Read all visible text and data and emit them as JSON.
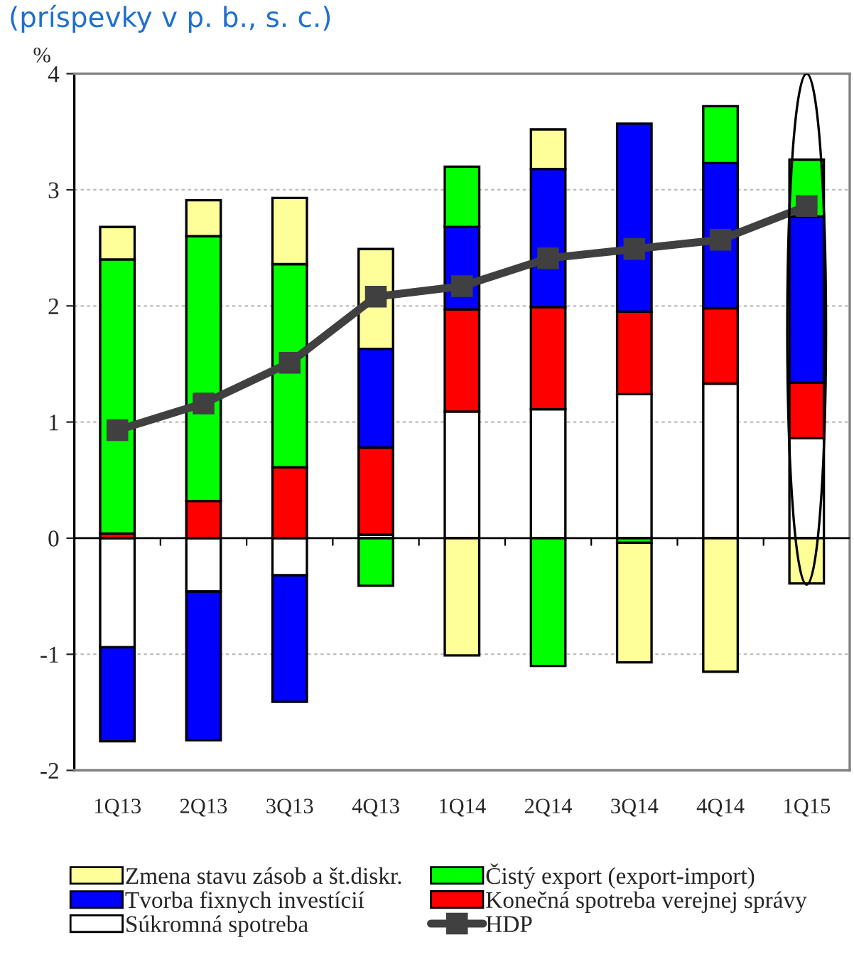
{
  "chart_data": {
    "type": "bar",
    "stacked": true,
    "title": "(príspevky v p. b., s. c.)",
    "ylabel": "%",
    "categories": [
      "1Q13",
      "2Q13",
      "3Q13",
      "4Q13",
      "1Q14",
      "2Q14",
      "3Q14",
      "4Q14",
      "1Q15"
    ],
    "series": [
      {
        "name": "Súkromná spotreba",
        "color": "#ffffff",
        "values": [
          -0.94,
          -0.46,
          -0.32,
          0.03,
          1.09,
          1.11,
          1.24,
          1.33,
          0.86
        ]
      },
      {
        "name": "Konečná spotreba verejnej správy",
        "color": "#ff0000",
        "values": [
          0.04,
          0.32,
          0.61,
          0.75,
          0.88,
          0.88,
          0.71,
          0.65,
          0.48
        ]
      },
      {
        "name": "Tvorba fixnych investícií",
        "color": "#0000ff",
        "values": [
          -0.81,
          -1.28,
          -1.09,
          0.85,
          0.71,
          1.19,
          1.62,
          1.25,
          1.43
        ]
      },
      {
        "name": "Čistý export (export-import)",
        "color": "#00ff00",
        "values": [
          2.36,
          2.28,
          1.75,
          -0.41,
          0.52,
          -1.1,
          -0.04,
          0.49,
          0.49
        ]
      },
      {
        "name": "Zmena stavu zásob a št.diskr.",
        "color": "#ffff99",
        "values": [
          0.28,
          0.31,
          0.57,
          0.86,
          -1.01,
          0.34,
          -1.03,
          -1.15,
          -0.39
        ]
      },
      {
        "name": "HDP",
        "type": "line",
        "color": "#404040",
        "marker": "square",
        "values": [
          0.93,
          1.16,
          1.51,
          2.08,
          2.17,
          2.41,
          2.49,
          2.57,
          2.86
        ]
      }
    ],
    "ylim": [
      -2,
      4
    ],
    "yticks": [
      -2,
      -1,
      0,
      1,
      2,
      3,
      4
    ],
    "grid": "y",
    "legend": "bottom"
  }
}
